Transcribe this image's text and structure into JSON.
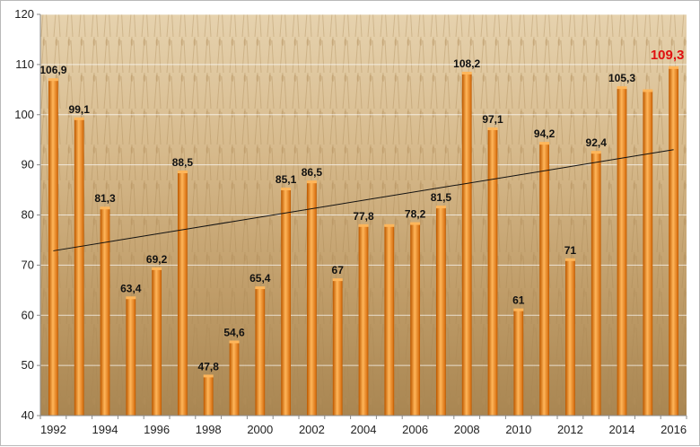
{
  "chart_data": {
    "type": "bar",
    "title": "",
    "xlabel": "",
    "ylabel": "",
    "ylim": [
      40,
      120
    ],
    "y_ticks": [
      40,
      50,
      60,
      70,
      80,
      90,
      100,
      110,
      120
    ],
    "y_tick_labels": [
      "40",
      "50",
      "60",
      "70",
      "80",
      "90",
      "100",
      "110",
      "120"
    ],
    "x_tick_labels": [
      "1992",
      "1994",
      "1996",
      "1998",
      "2000",
      "2002",
      "2004",
      "2006",
      "2008",
      "2010",
      "2012",
      "2014",
      "2016"
    ],
    "categories": [
      "1992",
      "1993",
      "1994",
      "1995",
      "1996",
      "1997",
      "1998",
      "1999",
      "2000",
      "2001",
      "2002",
      "2003",
      "2004",
      "2005",
      "2006",
      "2007",
      "2008",
      "2009",
      "2010",
      "2011",
      "2012",
      "2013",
      "2014",
      "2015",
      "2016"
    ],
    "values": [
      106.9,
      99.1,
      81.3,
      63.4,
      69.2,
      88.5,
      47.8,
      54.6,
      65.4,
      85.1,
      86.5,
      67,
      77.8,
      77.8,
      78.2,
      81.5,
      108.2,
      97.1,
      61,
      94.2,
      71,
      92.4,
      105.3,
      104.7,
      109.3
    ],
    "data_labels": [
      "106,9",
      "99,1",
      "81,3",
      "63,4",
      "69,2",
      "88,5",
      "47,8",
      "54,6",
      "65,4",
      "85,1",
      "86,5",
      "67",
      "77,8",
      "",
      "78,2",
      "81,5",
      "108,2",
      "97,1",
      "61",
      "94,2",
      "71",
      "92,4",
      "105,3",
      "",
      "109,3"
    ],
    "highlight_index": 24,
    "trendline": {
      "type": "linear"
    },
    "grid": true,
    "legend": "none",
    "colors": {
      "bar": "#f08a1e",
      "bar_dark": "#c25f05",
      "bar_light": "#ffb65a",
      "highlight_label": "#e01010",
      "gridline": "#ffffff",
      "trendline": "#111111",
      "background": "#c9a772"
    }
  }
}
